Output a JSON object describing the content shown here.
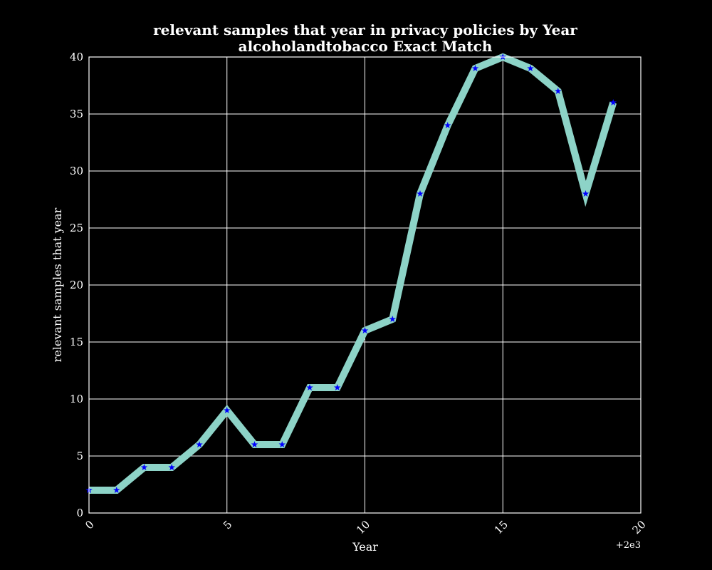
{
  "chart_data": {
    "type": "line",
    "title": "relevant samples that year in privacy policies by Year",
    "subtitle": "alcoholandtobacco Exact Match",
    "xlabel": "Year",
    "ylabel": "relevant samples that year",
    "x_offset_label": "+2e3",
    "xlim": [
      0,
      20
    ],
    "ylim": [
      0,
      40
    ],
    "x_ticks": [
      0,
      5,
      10,
      15,
      20
    ],
    "y_ticks": [
      0,
      5,
      10,
      15,
      20,
      25,
      30,
      35,
      40
    ],
    "grid": true,
    "series": [
      {
        "x": [
          0,
          1,
          2,
          3,
          4,
          5,
          6,
          7,
          8,
          9,
          10,
          11,
          12,
          13,
          14,
          15,
          16,
          17,
          18,
          19
        ],
        "values": [
          2,
          2,
          4,
          4,
          6,
          9,
          6,
          6,
          11,
          11,
          16,
          17,
          28,
          34,
          39,
          40,
          39,
          37,
          28,
          36
        ]
      }
    ],
    "colors": {
      "background": "#000000",
      "line": "#8dd3c7",
      "marker": "#0000ff",
      "grid": "#ffffff",
      "text": "#ffffff"
    },
    "marker": "star"
  }
}
